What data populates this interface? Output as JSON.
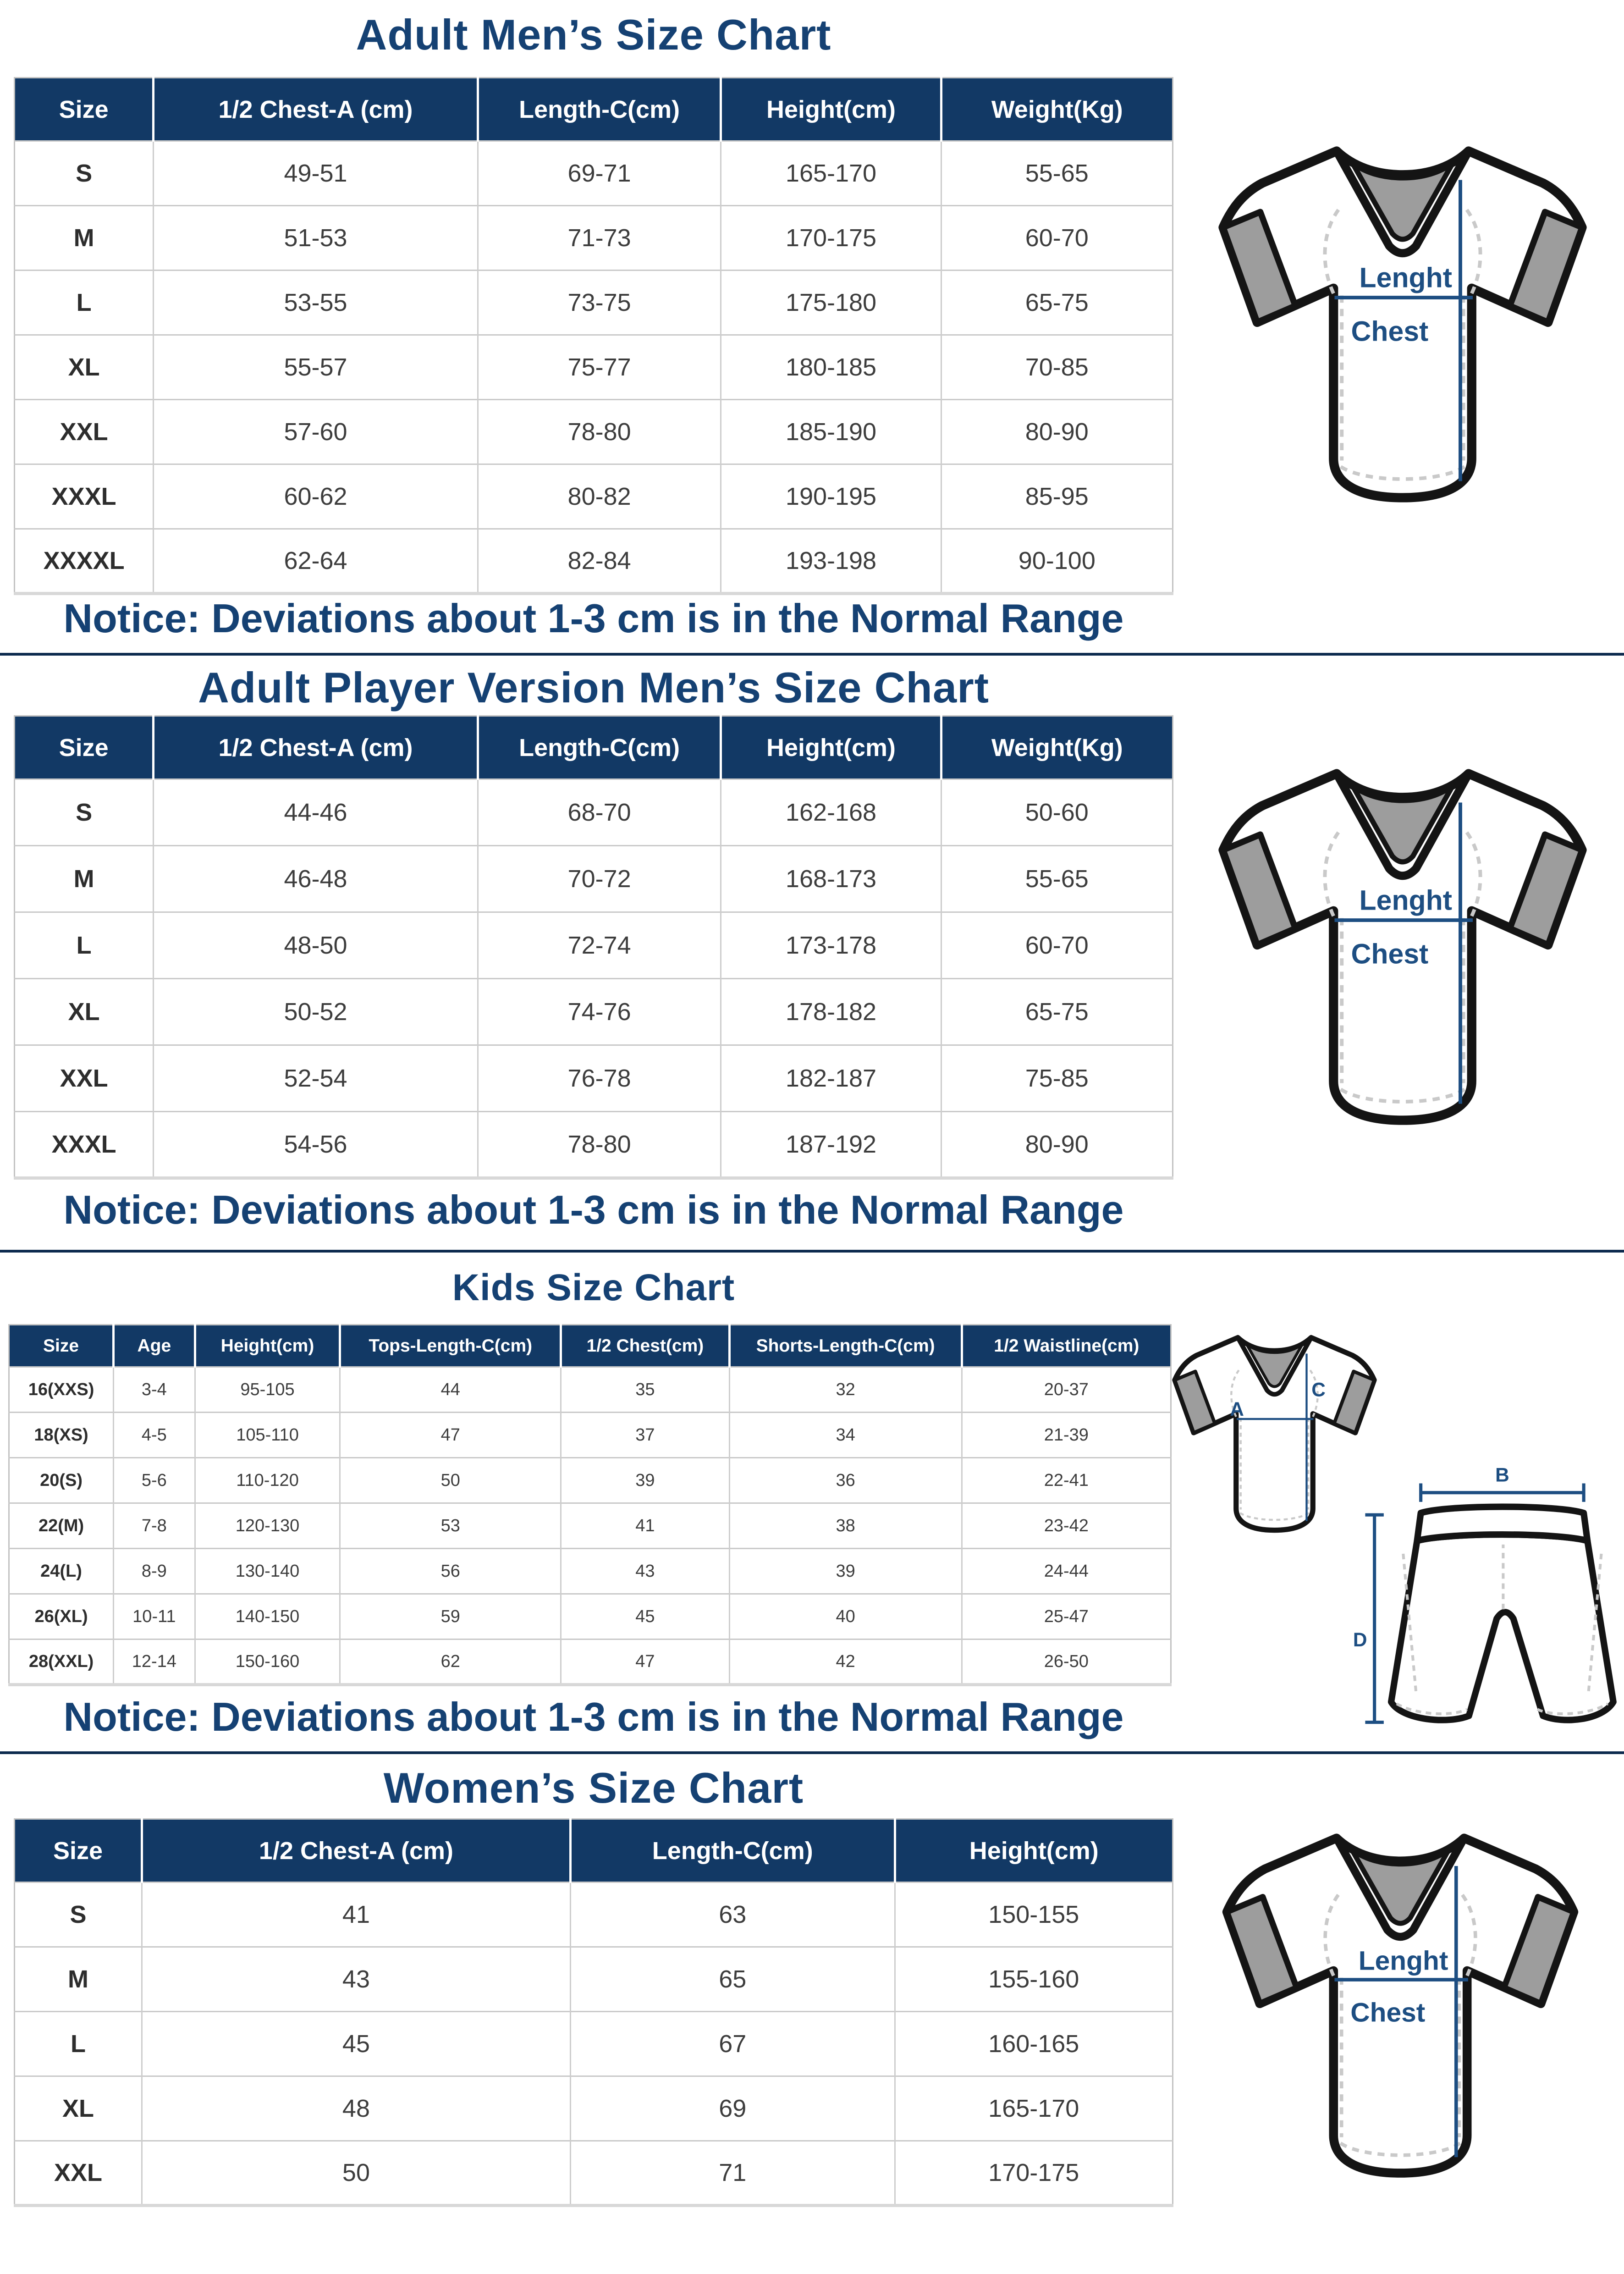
{
  "colors": {
    "header_bg": "#123965",
    "title_color": "#154173",
    "notice_color": "#154173",
    "divider_color": "#0c2a4e",
    "label_color": "#1d4e82",
    "body_text": "#3d3d3d",
    "size_text": "#2d2d2d",
    "border_light": "#c9c9c9"
  },
  "notice_text": "Notice: Deviations about 1-3 cm is in the Normal Range",
  "sections": [
    {
      "id": "adult_mens",
      "title": "Adult Men’s Size Chart",
      "columns": [
        "Size",
        "1/2 Chest-A (cm)",
        "Length-C(cm)",
        "Height(cm)",
        "Weight(Kg)"
      ],
      "rows": [
        [
          "S",
          "49-51",
          "69-71",
          "165-170",
          "55-65"
        ],
        [
          "M",
          "51-53",
          "71-73",
          "170-175",
          "60-70"
        ],
        [
          "L",
          "53-55",
          "73-75",
          "175-180",
          "65-75"
        ],
        [
          "XL",
          "55-57",
          "75-77",
          "180-185",
          "70-85"
        ],
        [
          "XXL",
          "57-60",
          "78-80",
          "185-190",
          "80-90"
        ],
        [
          "XXXL",
          "60-62",
          "80-82",
          "190-195",
          "85-95"
        ],
        [
          "XXXXL",
          "62-64",
          "82-84",
          "193-198",
          "90-100"
        ]
      ],
      "shirt_labels": {
        "length_label": "Lenght",
        "chest_label": "Chest"
      }
    },
    {
      "id": "adult_player_mens",
      "title": "Adult Player Version Men’s Size Chart",
      "columns": [
        "Size",
        "1/2 Chest-A (cm)",
        "Length-C(cm)",
        "Height(cm)",
        "Weight(Kg)"
      ],
      "rows": [
        [
          "S",
          "44-46",
          "68-70",
          "162-168",
          "50-60"
        ],
        [
          "M",
          "46-48",
          "70-72",
          "168-173",
          "55-65"
        ],
        [
          "L",
          "48-50",
          "72-74",
          "173-178",
          "60-70"
        ],
        [
          "XL",
          "50-52",
          "74-76",
          "178-182",
          "65-75"
        ],
        [
          "XXL",
          "52-54",
          "76-78",
          "182-187",
          "75-85"
        ],
        [
          "XXXL",
          "54-56",
          "78-80",
          "187-192",
          "80-90"
        ]
      ],
      "shirt_labels": {
        "length_label": "Lenght",
        "chest_label": "Chest"
      }
    },
    {
      "id": "kids",
      "title": "Kids Size Chart",
      "columns": [
        "Size",
        "Age",
        "Height(cm)",
        "Tops-Length-C(cm)",
        "1/2 Chest(cm)",
        "Shorts-Length-C(cm)",
        "1/2 Waistline(cm)"
      ],
      "rows": [
        [
          "16(XXS)",
          "3-4",
          "95-105",
          "44",
          "35",
          "32",
          "20-37"
        ],
        [
          "18(XS)",
          "4-5",
          "105-110",
          "47",
          "37",
          "34",
          "21-39"
        ],
        [
          "20(S)",
          "5-6",
          "110-120",
          "50",
          "39",
          "36",
          "22-41"
        ],
        [
          "22(M)",
          "7-8",
          "120-130",
          "53",
          "41",
          "38",
          "23-42"
        ],
        [
          "24(L)",
          "8-9",
          "130-140",
          "56",
          "43",
          "39",
          "24-44"
        ],
        [
          "26(XL)",
          "10-11",
          "140-150",
          "59",
          "45",
          "40",
          "25-47"
        ],
        [
          "28(XXL)",
          "12-14",
          "150-160",
          "62",
          "47",
          "42",
          "26-50"
        ]
      ],
      "shirt_labels": {
        "a": "A",
        "b": "B",
        "c": "C",
        "d": "D"
      }
    },
    {
      "id": "womens",
      "title": "Women’s Size Chart",
      "columns": [
        "Size",
        "1/2 Chest-A (cm)",
        "Length-C(cm)",
        "Height(cm)"
      ],
      "rows": [
        [
          "S",
          "41",
          "63",
          "150-155"
        ],
        [
          "M",
          "43",
          "65",
          "155-160"
        ],
        [
          "L",
          "45",
          "67",
          "160-165"
        ],
        [
          "XL",
          "48",
          "69",
          "165-170"
        ],
        [
          "XXL",
          "50",
          "71",
          "170-175"
        ]
      ],
      "shirt_labels": {
        "length_label": "Lenght",
        "chest_label": "Chest"
      }
    }
  ]
}
